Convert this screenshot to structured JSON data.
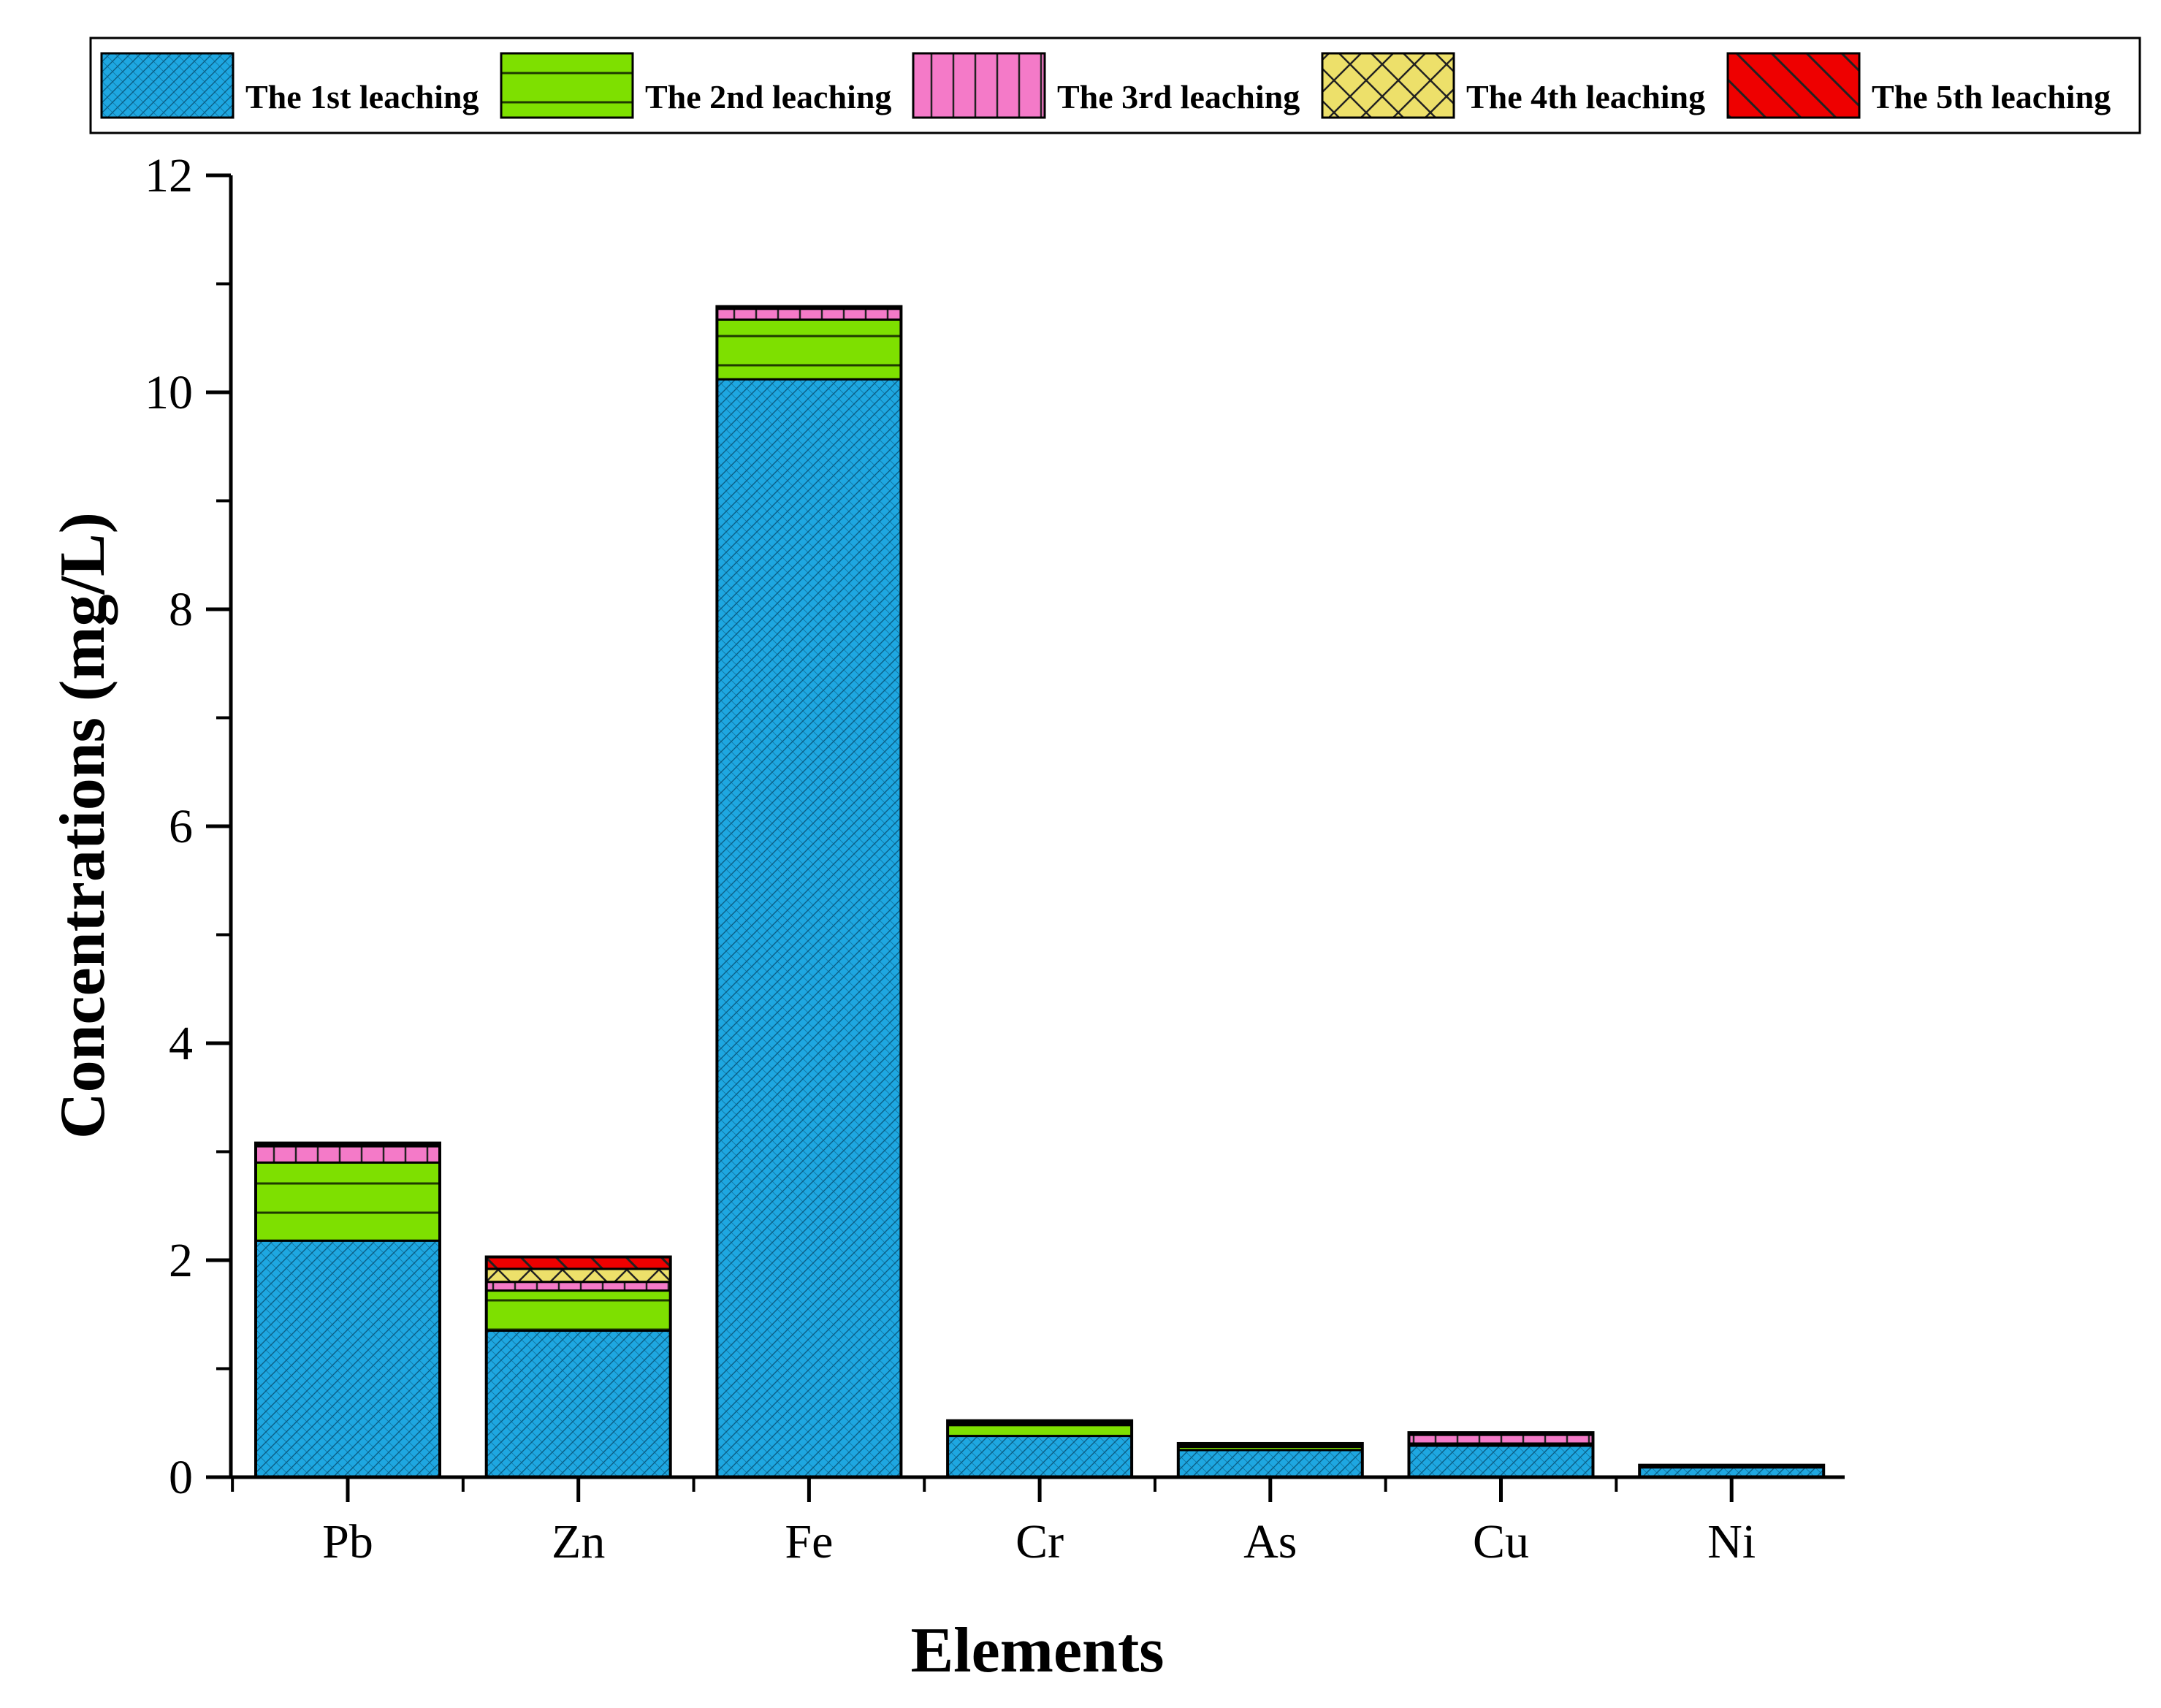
{
  "chart_data": {
    "type": "bar",
    "stacked": true,
    "title": "",
    "xlabel": "Elements",
    "ylabel": "Concentrations (mg/L)",
    "ylim": [
      0,
      12
    ],
    "yticks": [
      0,
      2,
      4,
      6,
      8,
      10,
      12
    ],
    "grid": false,
    "legend_position": "top",
    "categories": [
      "Pb",
      "Zn",
      "Fe",
      "Cr",
      "As",
      "Cu",
      "Ni"
    ],
    "series": [
      {
        "name": "The 1st leaching",
        "color": "#1ea7e1",
        "pattern": "dense-diagonal-crosshatch",
        "values": [
          2.18,
          1.35,
          10.12,
          0.38,
          0.25,
          0.29,
          0.09
        ]
      },
      {
        "name": "The 2nd leaching",
        "color": "#7ee000",
        "pattern": "horizontal-lines",
        "values": [
          0.72,
          0.37,
          0.55,
          0.1,
          0.03,
          0.02,
          0.01
        ]
      },
      {
        "name": "The 3rd leaching",
        "color": "#f47ac8",
        "pattern": "vertical-lines",
        "values": [
          0.15,
          0.08,
          0.1,
          0.02,
          0.01,
          0.08,
          0.01
        ]
      },
      {
        "name": "The 4th leaching",
        "color": "#ede06a",
        "pattern": "crosshatch",
        "values": [
          0.02,
          0.12,
          0.01,
          0.01,
          0.01,
          0.01,
          0.0
        ]
      },
      {
        "name": "The 5th leaching",
        "color": "#ee0000",
        "pattern": "back-diagonal-lines",
        "values": [
          0.01,
          0.11,
          0.01,
          0.01,
          0.01,
          0.01,
          0.0
        ]
      }
    ]
  }
}
